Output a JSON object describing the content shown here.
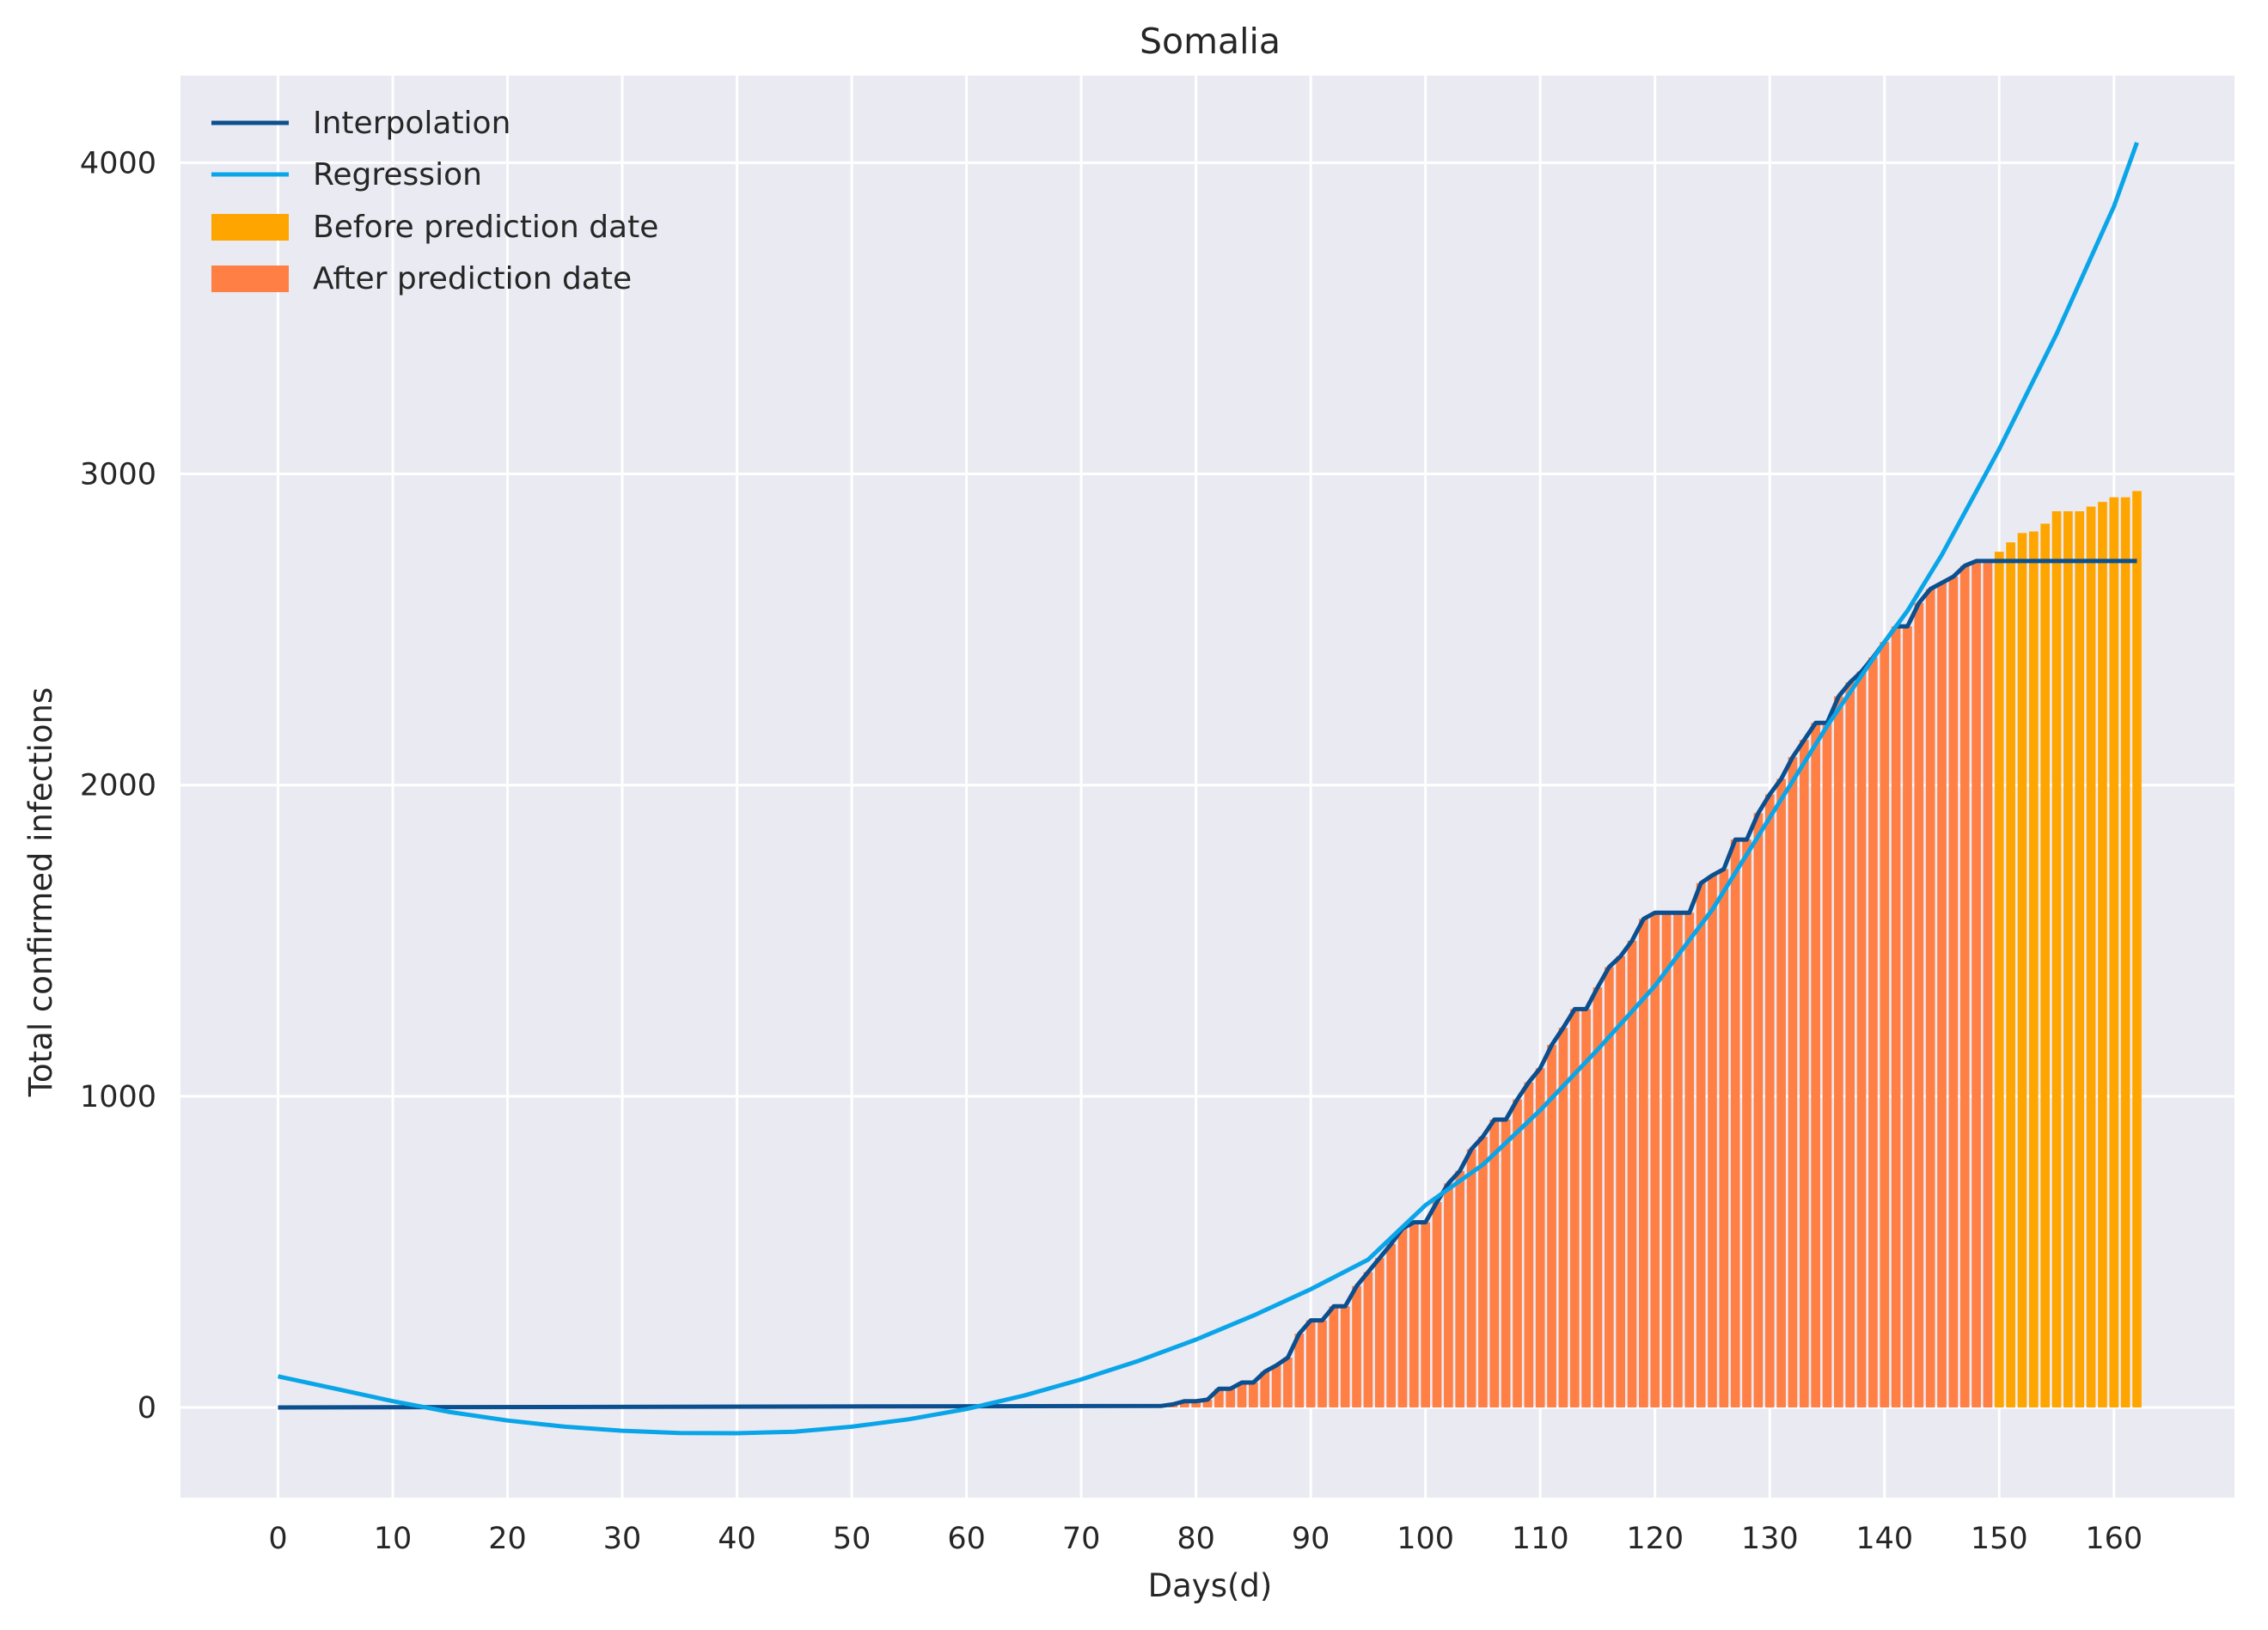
{
  "chart_data": {
    "type": "bar",
    "title": "Somalia",
    "xlabel": "Days(d)",
    "ylabel": "Total confirmed infections",
    "xlim": [
      -8.5,
      170.5
    ],
    "ylim": [
      -290,
      4280
    ],
    "xticks": [
      0,
      10,
      20,
      30,
      40,
      50,
      60,
      70,
      80,
      90,
      100,
      110,
      120,
      130,
      140,
      150,
      160
    ],
    "yticks": [
      0,
      1000,
      2000,
      3000,
      4000
    ],
    "grid": true,
    "legend_position": "top-left",
    "colors": {
      "background": "#eaeaf2",
      "interpolation": "#0b4f8f",
      "regression": "#0aa5e8",
      "before_prediction": "#ffa500",
      "after_prediction": "#ff7f45"
    },
    "legend": [
      {
        "label": "Interpolation",
        "kind": "line",
        "series": "interpolation"
      },
      {
        "label": "Regression",
        "kind": "line",
        "series": "regression"
      },
      {
        "label": "Before prediction date",
        "kind": "bar",
        "series": "before_prediction"
      },
      {
        "label": "After prediction date",
        "kind": "bar",
        "series": "after_prediction"
      }
    ],
    "bars_after_prediction": [
      [
        78,
        10
      ],
      [
        79,
        20
      ],
      [
        80,
        20
      ],
      [
        81,
        25
      ],
      [
        82,
        60
      ],
      [
        83,
        60
      ],
      [
        84,
        80
      ],
      [
        85,
        80
      ],
      [
        86,
        115
      ],
      [
        87,
        135
      ],
      [
        88,
        160
      ],
      [
        89,
        237
      ],
      [
        90,
        280
      ],
      [
        91,
        280
      ],
      [
        92,
        325
      ],
      [
        93,
        325
      ],
      [
        94,
        390
      ],
      [
        95,
        435
      ],
      [
        96,
        480
      ],
      [
        97,
        525
      ],
      [
        98,
        575
      ],
      [
        99,
        595
      ],
      [
        100,
        595
      ],
      [
        101,
        660
      ],
      [
        102,
        720
      ],
      [
        103,
        760
      ],
      [
        104,
        830
      ],
      [
        105,
        870
      ],
      [
        106,
        925
      ],
      [
        107,
        925
      ],
      [
        108,
        990
      ],
      [
        109,
        1045
      ],
      [
        110,
        1090
      ],
      [
        111,
        1165
      ],
      [
        112,
        1220
      ],
      [
        113,
        1280
      ],
      [
        114,
        1280
      ],
      [
        115,
        1350
      ],
      [
        116,
        1415
      ],
      [
        117,
        1450
      ],
      [
        118,
        1500
      ],
      [
        119,
        1570
      ],
      [
        120,
        1590
      ],
      [
        121,
        1590
      ],
      [
        122,
        1590
      ],
      [
        123,
        1590
      ],
      [
        124,
        1685
      ],
      [
        125,
        1710
      ],
      [
        126,
        1730
      ],
      [
        127,
        1825
      ],
      [
        128,
        1825
      ],
      [
        129,
        1910
      ],
      [
        130,
        1970
      ],
      [
        131,
        2020
      ],
      [
        132,
        2090
      ],
      [
        133,
        2145
      ],
      [
        134,
        2200
      ],
      [
        135,
        2200
      ],
      [
        136,
        2285
      ],
      [
        137,
        2330
      ],
      [
        138,
        2365
      ],
      [
        139,
        2410
      ],
      [
        140,
        2460
      ],
      [
        141,
        2510
      ],
      [
        142,
        2510
      ],
      [
        143,
        2585
      ],
      [
        144,
        2630
      ],
      [
        145,
        2650
      ],
      [
        146,
        2670
      ],
      [
        147,
        2705
      ],
      [
        148,
        2720
      ],
      [
        149,
        2720
      ]
    ],
    "bars_before_prediction": [
      [
        150,
        2750
      ],
      [
        151,
        2780
      ],
      [
        152,
        2810
      ],
      [
        153,
        2815
      ],
      [
        154,
        2840
      ],
      [
        155,
        2880
      ],
      [
        156,
        2880
      ],
      [
        157,
        2880
      ],
      [
        158,
        2895
      ],
      [
        159,
        2910
      ],
      [
        160,
        2925
      ],
      [
        161,
        2925
      ],
      [
        162,
        2945
      ]
    ],
    "interpolation_line": [
      [
        0,
        0
      ],
      [
        77,
        5
      ],
      [
        78,
        10
      ],
      [
        79,
        20
      ],
      [
        80,
        20
      ],
      [
        81,
        25
      ],
      [
        82,
        60
      ],
      [
        83,
        60
      ],
      [
        84,
        80
      ],
      [
        85,
        80
      ],
      [
        86,
        115
      ],
      [
        87,
        135
      ],
      [
        88,
        160
      ],
      [
        89,
        237
      ],
      [
        90,
        280
      ],
      [
        91,
        280
      ],
      [
        92,
        325
      ],
      [
        93,
        325
      ],
      [
        94,
        390
      ],
      [
        95,
        435
      ],
      [
        96,
        480
      ],
      [
        97,
        525
      ],
      [
        98,
        575
      ],
      [
        99,
        595
      ],
      [
        100,
        595
      ],
      [
        101,
        660
      ],
      [
        102,
        720
      ],
      [
        103,
        760
      ],
      [
        104,
        830
      ],
      [
        105,
        870
      ],
      [
        106,
        925
      ],
      [
        107,
        925
      ],
      [
        108,
        990
      ],
      [
        109,
        1045
      ],
      [
        110,
        1090
      ],
      [
        111,
        1165
      ],
      [
        112,
        1220
      ],
      [
        113,
        1280
      ],
      [
        114,
        1280
      ],
      [
        115,
        1350
      ],
      [
        116,
        1415
      ],
      [
        117,
        1450
      ],
      [
        118,
        1500
      ],
      [
        119,
        1570
      ],
      [
        120,
        1590
      ],
      [
        121,
        1590
      ],
      [
        122,
        1590
      ],
      [
        123,
        1590
      ],
      [
        124,
        1685
      ],
      [
        125,
        1710
      ],
      [
        126,
        1730
      ],
      [
        127,
        1825
      ],
      [
        128,
        1825
      ],
      [
        129,
        1910
      ],
      [
        130,
        1970
      ],
      [
        131,
        2020
      ],
      [
        132,
        2090
      ],
      [
        133,
        2145
      ],
      [
        134,
        2200
      ],
      [
        135,
        2200
      ],
      [
        136,
        2285
      ],
      [
        137,
        2330
      ],
      [
        138,
        2365
      ],
      [
        139,
        2410
      ],
      [
        140,
        2460
      ],
      [
        141,
        2510
      ],
      [
        142,
        2510
      ],
      [
        143,
        2585
      ],
      [
        144,
        2630
      ],
      [
        145,
        2650
      ],
      [
        146,
        2670
      ],
      [
        147,
        2705
      ],
      [
        148,
        2720
      ],
      [
        162,
        2720
      ]
    ],
    "regression_curve": [
      [
        0,
        100
      ],
      [
        5,
        60
      ],
      [
        10,
        20
      ],
      [
        15,
        -15
      ],
      [
        20,
        -42
      ],
      [
        25,
        -62
      ],
      [
        30,
        -75
      ],
      [
        35,
        -82
      ],
      [
        40,
        -83
      ],
      [
        45,
        -78
      ],
      [
        50,
        -62
      ],
      [
        55,
        -38
      ],
      [
        60,
        -5
      ],
      [
        65,
        38
      ],
      [
        70,
        90
      ],
      [
        75,
        150
      ],
      [
        80,
        218
      ],
      [
        85,
        295
      ],
      [
        90,
        380
      ],
      [
        95,
        475
      ],
      [
        100,
        650
      ],
      [
        105,
        780
      ],
      [
        110,
        955
      ],
      [
        115,
        1150
      ],
      [
        120,
        1355
      ],
      [
        125,
        1600
      ],
      [
        130,
        1895
      ],
      [
        135,
        2190
      ],
      [
        140,
        2460
      ],
      [
        142,
        2560
      ],
      [
        145,
        2740
      ],
      [
        150,
        3080
      ],
      [
        155,
        3450
      ],
      [
        160,
        3860
      ],
      [
        162,
        4065
      ]
    ]
  }
}
